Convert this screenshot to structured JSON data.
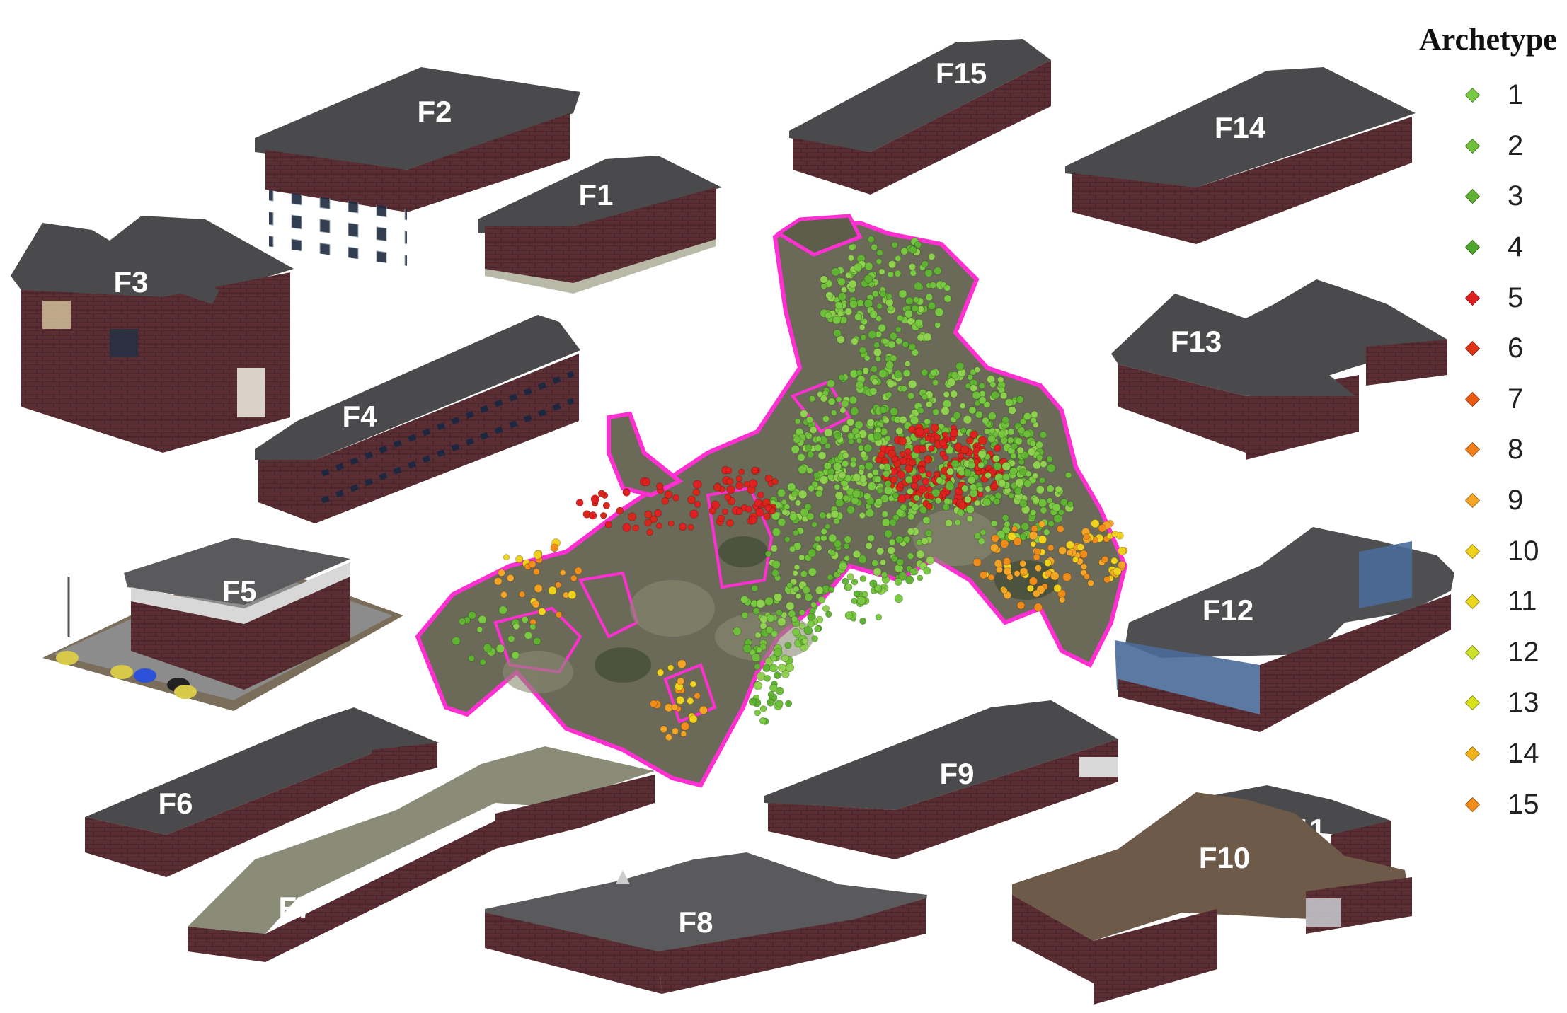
{
  "legend": {
    "title": "Archetype",
    "items": [
      {
        "label": "1",
        "color": "#7ac943"
      },
      {
        "label": "2",
        "color": "#6fbf3a"
      },
      {
        "label": "3",
        "color": "#5fb232"
      },
      {
        "label": "4",
        "color": "#4ea82b"
      },
      {
        "label": "5",
        "color": "#e02020"
      },
      {
        "label": "6",
        "color": "#e03318"
      },
      {
        "label": "7",
        "color": "#ea5a12"
      },
      {
        "label": "8",
        "color": "#f0801a"
      },
      {
        "label": "9",
        "color": "#f4a525"
      },
      {
        "label": "10",
        "color": "#f0d21c"
      },
      {
        "label": "11",
        "color": "#ead81e"
      },
      {
        "label": "12",
        "color": "#cfe02a"
      },
      {
        "label": "13",
        "color": "#d8e21a"
      },
      {
        "label": "14",
        "color": "#f2b21a"
      },
      {
        "label": "15",
        "color": "#f08c1a"
      }
    ]
  },
  "buildings": {
    "F1": "F1",
    "F2": "F2",
    "F3": "F3",
    "F4": "F4",
    "F5": "F5",
    "F6": "F6",
    "F7": "F7",
    "F8": "F8",
    "F9": "F9",
    "F10": "F10",
    "F11": "F11",
    "F12": "F12",
    "F13": "F13",
    "F14": "F14",
    "F15": "F15"
  },
  "colors": {
    "roof": "#4a4a4c",
    "brick": "#5a2e32",
    "boundary": "#ff2fd2",
    "map_ground": "#6b6a58"
  }
}
